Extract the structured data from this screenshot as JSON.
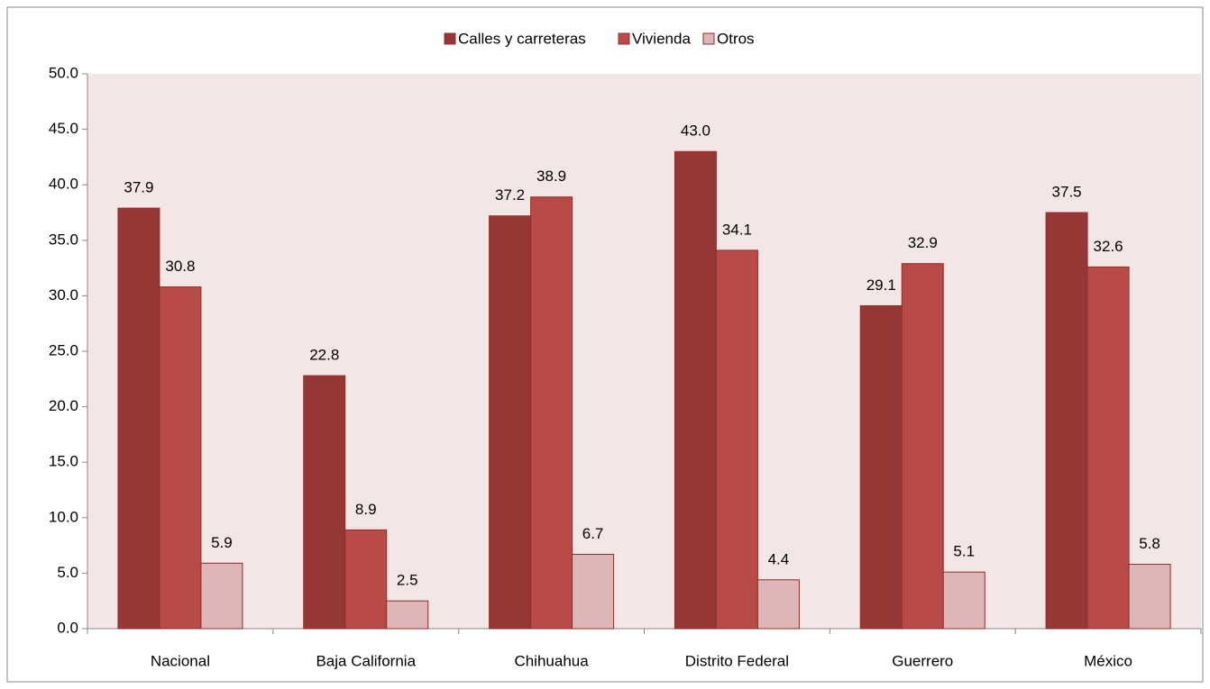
{
  "chart_data": {
    "type": "bar",
    "categories": [
      "Nacional",
      "Baja California",
      "Chihuahua",
      "Distrito Federal",
      "Guerrero",
      "México"
    ],
    "series": [
      {
        "name": "Calles y carreteras",
        "color": "#953735",
        "values": [
          37.9,
          22.8,
          37.2,
          43.0,
          29.1,
          37.5
        ],
        "value_labels": [
          "37.9",
          "22.8",
          "37.2",
          "43.0",
          "29.1",
          "37.5"
        ]
      },
      {
        "name": "Vivienda",
        "color": "#b84a47",
        "values": [
          30.8,
          8.9,
          38.9,
          34.1,
          32.9,
          32.6
        ],
        "value_labels": [
          "30.8",
          "8.9",
          "38.9",
          "34.1",
          "32.9",
          "32.6"
        ]
      },
      {
        "name": "Otros",
        "color": "#ddb6b7",
        "values": [
          5.9,
          2.5,
          6.7,
          4.4,
          5.1,
          5.8
        ],
        "value_labels": [
          "5.9",
          "2.5",
          "6.7",
          "4.4",
          "5.1",
          "5.8"
        ]
      }
    ],
    "ylim": [
      0,
      50
    ],
    "yticks": [
      {
        "value": 0,
        "label": "0.0"
      },
      {
        "value": 5,
        "label": "5.0"
      },
      {
        "value": 10,
        "label": "10.0"
      },
      {
        "value": 15,
        "label": "15.0"
      },
      {
        "value": 20,
        "label": "20.0"
      },
      {
        "value": 25,
        "label": "25.0"
      },
      {
        "value": 30,
        "label": "30.0"
      },
      {
        "value": 35,
        "label": "35.0"
      },
      {
        "value": 40,
        "label": "40.0"
      },
      {
        "value": 45,
        "label": "45.0"
      },
      {
        "value": 50,
        "label": "50.0"
      }
    ],
    "legend": "top"
  }
}
